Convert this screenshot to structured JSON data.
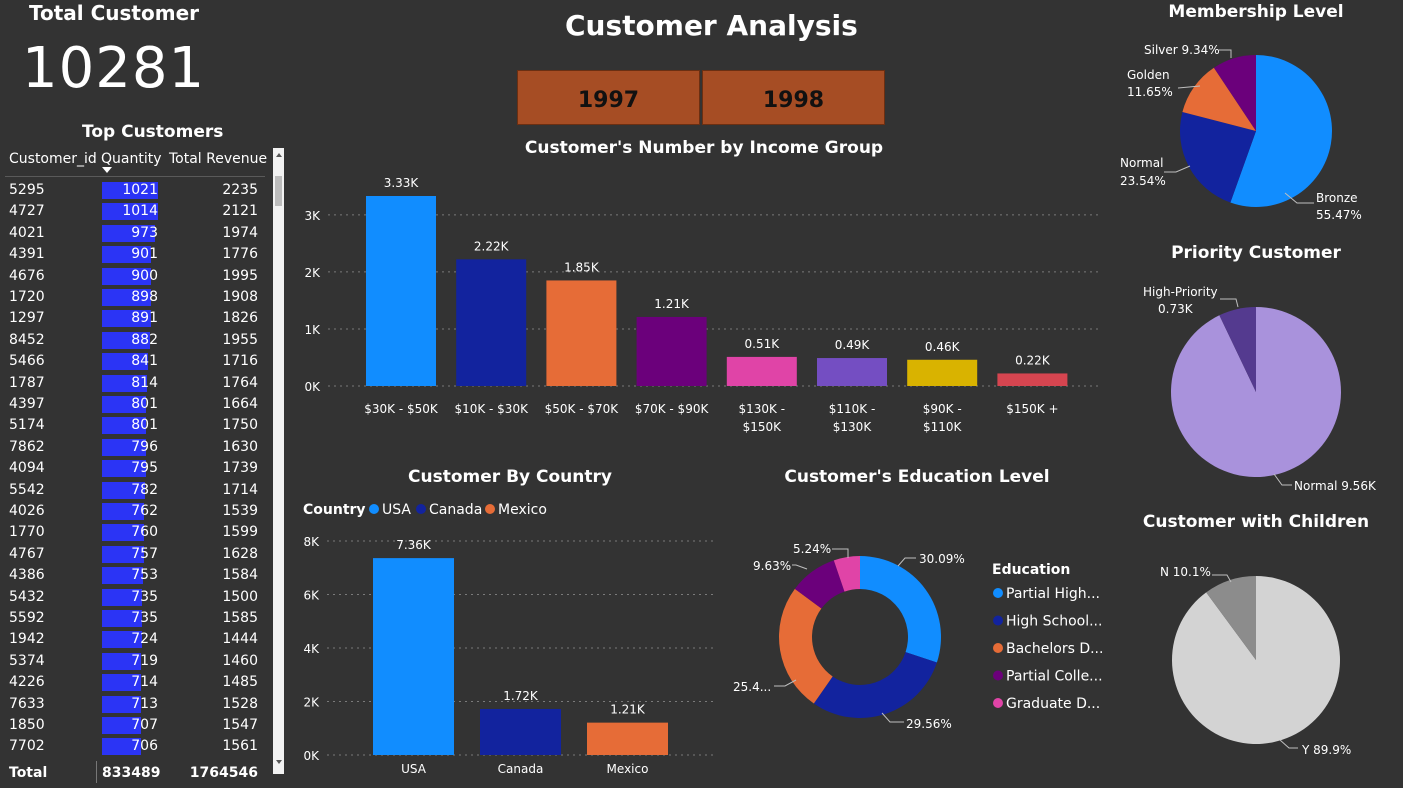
{
  "kpi": {
    "label": "Total Customer",
    "value": "10281"
  },
  "header": {
    "title": "Customer Analysis"
  },
  "year_slicer": {
    "options": [
      "1997",
      "1998"
    ]
  },
  "top_customers": {
    "title": "Top Customers",
    "columns": [
      "Customer_id",
      "Quantity",
      "Total Revenue"
    ],
    "sorted_column": "Quantity",
    "rows": [
      [
        "5295",
        1021,
        2235
      ],
      [
        "4727",
        1014,
        2121
      ],
      [
        "4021",
        973,
        1974
      ],
      [
        "4391",
        901,
        1776
      ],
      [
        "4676",
        900,
        1995
      ],
      [
        "1720",
        898,
        1908
      ],
      [
        "1297",
        891,
        1826
      ],
      [
        "8452",
        882,
        1955
      ],
      [
        "5466",
        841,
        1716
      ],
      [
        "1787",
        814,
        1764
      ],
      [
        "4397",
        801,
        1664
      ],
      [
        "5174",
        801,
        1750
      ],
      [
        "7862",
        796,
        1630
      ],
      [
        "4094",
        795,
        1739
      ],
      [
        "5542",
        782,
        1714
      ],
      [
        "4026",
        762,
        1539
      ],
      [
        "1770",
        760,
        1599
      ],
      [
        "4767",
        757,
        1628
      ],
      [
        "4386",
        753,
        1584
      ],
      [
        "5432",
        735,
        1500
      ],
      [
        "5592",
        735,
        1585
      ],
      [
        "1942",
        724,
        1444
      ],
      [
        "5374",
        719,
        1460
      ],
      [
        "4226",
        714,
        1485
      ],
      [
        "7633",
        713,
        1528
      ],
      [
        "1850",
        707,
        1547
      ],
      [
        "7702",
        706,
        1561
      ]
    ],
    "total": {
      "label": "Total",
      "quantity": "833489",
      "revenue": "1764546"
    }
  },
  "colors": {
    "background": "#333333",
    "light_blue": "#118dff",
    "dark_blue": "#12239e",
    "orange": "#e66c37",
    "purple": "#6b007b",
    "pink": "#e044a7",
    "violet": "#744ec2",
    "yellow": "#d9b300",
    "red": "#d64550",
    "lavender": "#a992dc",
    "dark_violet": "#543a8f",
    "light_gray": "#d3d3d3",
    "gray": "#8c8c8c",
    "slicer": "#a64d24",
    "table_bar": "#2b34f5"
  },
  "icons": {
    "sort": "sort-descending-icon",
    "scroll_up": "chevron-up-icon",
    "scroll_down": "chevron-down-icon"
  },
  "chart_data": [
    {
      "id": "income",
      "type": "bar",
      "title": "Customer's Number by Income Group",
      "categories": [
        "$30K - $50K",
        "$10K - $30K",
        "$50K - $70K",
        "$70K - $90K",
        "$130K - $150K",
        "$110K - $130K",
        "$90K - $110K",
        "$150K +"
      ],
      "values": [
        3330,
        2220,
        1850,
        1210,
        510,
        490,
        460,
        220
      ],
      "data_labels": [
        "3.33K",
        "2.22K",
        "1.85K",
        "1.21K",
        "0.51K",
        "0.49K",
        "0.46K",
        "0.22K"
      ],
      "bar_colors": [
        "#118dff",
        "#12239e",
        "#e66c37",
        "#6b007b",
        "#e044a7",
        "#744ec2",
        "#d9b300",
        "#d64550"
      ],
      "ylim": [
        0,
        3330
      ],
      "yticks": [
        0,
        1000,
        2000,
        3000
      ],
      "ytick_labels": [
        "0K",
        "1K",
        "2K",
        "3K"
      ],
      "grid": true
    },
    {
      "id": "country",
      "type": "bar",
      "title": "Customer By Country",
      "legend_title": "Country",
      "legend_position": "top-left",
      "categories": [
        "USA",
        "Canada",
        "Mexico"
      ],
      "values": [
        7360,
        1720,
        1210
      ],
      "data_labels": [
        "7.36K",
        "1.72K",
        "1.21K"
      ],
      "bar_colors": [
        "#118dff",
        "#12239e",
        "#e66c37"
      ],
      "ylim": [
        0,
        8000
      ],
      "yticks": [
        0,
        2000,
        4000,
        6000,
        8000
      ],
      "ytick_labels": [
        "0K",
        "2K",
        "4K",
        "6K",
        "8K"
      ],
      "grid": true
    },
    {
      "id": "education",
      "type": "pie",
      "title": "Customer's Education Level",
      "legend_title": "Education",
      "legend_position": "right",
      "donut": true,
      "labels": [
        "Partial High...",
        "High School...",
        "Bachelors D...",
        "Partial Colle...",
        "Graduate D..."
      ],
      "values": [
        30.09,
        29.56,
        25.48,
        9.63,
        5.24
      ],
      "data_labels": [
        "30.09%",
        "29.56%",
        "25.4...",
        "9.63%",
        "5.24%"
      ],
      "colors": [
        "#118dff",
        "#12239e",
        "#e66c37",
        "#6b007b",
        "#e044a7"
      ]
    },
    {
      "id": "membership",
      "type": "pie",
      "title": "Membership Level",
      "labels": [
        "Bronze",
        "Normal",
        "Golden",
        "Silver"
      ],
      "values": [
        55.47,
        23.54,
        11.65,
        9.34
      ],
      "data_labels": [
        "Bronze 55.47%",
        "Normal 23.54%",
        "Golden 11.65%",
        "Silver 9.34%"
      ],
      "colors": [
        "#118dff",
        "#12239e",
        "#e66c37",
        "#6b007b"
      ]
    },
    {
      "id": "priority",
      "type": "pie",
      "title": "Priority Customer",
      "labels": [
        "Normal",
        "High-Priority"
      ],
      "values": [
        9560,
        730
      ],
      "data_labels": [
        "Normal 9.56K",
        "High-Priority 0.73K"
      ],
      "colors": [
        "#a992dc",
        "#543a8f"
      ]
    },
    {
      "id": "children",
      "type": "pie",
      "title": "Customer with Children",
      "labels": [
        "Y",
        "N"
      ],
      "values": [
        89.9,
        10.1
      ],
      "data_labels": [
        "Y 89.9%",
        "N 10.1%"
      ],
      "colors": [
        "#d3d3d3",
        "#8c8c8c"
      ]
    }
  ]
}
